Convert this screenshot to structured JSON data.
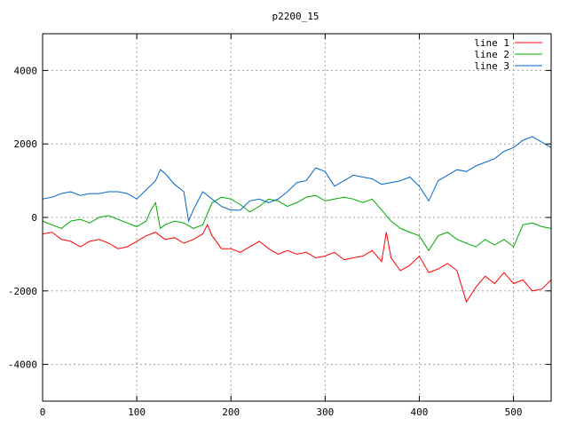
{
  "chart_data": {
    "type": "line",
    "title": "p2200_15",
    "xlabel": "",
    "ylabel": "",
    "xlim": [
      0,
      540
    ],
    "ylim": [
      -5000,
      5000
    ],
    "xticks": [
      0,
      100,
      200,
      300,
      400,
      500
    ],
    "yticks": [
      -4000,
      -2000,
      0,
      2000,
      4000
    ],
    "grid": true,
    "legend_position": "top-right",
    "series": [
      {
        "name": "line 1",
        "color": "#ff0000",
        "points": [
          [
            0,
            -450
          ],
          [
            10,
            -400
          ],
          [
            20,
            -600
          ],
          [
            30,
            -650
          ],
          [
            40,
            -800
          ],
          [
            50,
            -650
          ],
          [
            60,
            -600
          ],
          [
            70,
            -700
          ],
          [
            80,
            -850
          ],
          [
            90,
            -800
          ],
          [
            100,
            -650
          ],
          [
            110,
            -500
          ],
          [
            120,
            -400
          ],
          [
            130,
            -600
          ],
          [
            140,
            -550
          ],
          [
            150,
            -700
          ],
          [
            160,
            -600
          ],
          [
            170,
            -450
          ],
          [
            175,
            -200
          ],
          [
            180,
            -500
          ],
          [
            190,
            -850
          ],
          [
            200,
            -850
          ],
          [
            210,
            -950
          ],
          [
            220,
            -800
          ],
          [
            230,
            -650
          ],
          [
            240,
            -850
          ],
          [
            250,
            -1000
          ],
          [
            260,
            -900
          ],
          [
            270,
            -1000
          ],
          [
            280,
            -950
          ],
          [
            290,
            -1100
          ],
          [
            300,
            -1050
          ],
          [
            310,
            -950
          ],
          [
            320,
            -1150
          ],
          [
            330,
            -1100
          ],
          [
            340,
            -1050
          ],
          [
            350,
            -900
          ],
          [
            360,
            -1200
          ],
          [
            365,
            -400
          ],
          [
            370,
            -1100
          ],
          [
            380,
            -1450
          ],
          [
            390,
            -1300
          ],
          [
            400,
            -1050
          ],
          [
            410,
            -1500
          ],
          [
            420,
            -1400
          ],
          [
            430,
            -1250
          ],
          [
            440,
            -1450
          ],
          [
            450,
            -2300
          ],
          [
            460,
            -1900
          ],
          [
            470,
            -1600
          ],
          [
            480,
            -1800
          ],
          [
            490,
            -1500
          ],
          [
            500,
            -1800
          ],
          [
            510,
            -1700
          ],
          [
            520,
            -2000
          ],
          [
            530,
            -1950
          ],
          [
            540,
            -1700
          ]
        ]
      },
      {
        "name": "line 2",
        "color": "#00aa00",
        "points": [
          [
            0,
            -100
          ],
          [
            10,
            -200
          ],
          [
            20,
            -300
          ],
          [
            30,
            -100
          ],
          [
            40,
            -50
          ],
          [
            50,
            -150
          ],
          [
            60,
            0
          ],
          [
            70,
            50
          ],
          [
            80,
            -50
          ],
          [
            90,
            -150
          ],
          [
            100,
            -250
          ],
          [
            110,
            -100
          ],
          [
            115,
            200
          ],
          [
            120,
            400
          ],
          [
            125,
            -300
          ],
          [
            130,
            -200
          ],
          [
            140,
            -100
          ],
          [
            150,
            -150
          ],
          [
            160,
            -300
          ],
          [
            170,
            -200
          ],
          [
            180,
            400
          ],
          [
            190,
            550
          ],
          [
            200,
            500
          ],
          [
            210,
            350
          ],
          [
            220,
            150
          ],
          [
            230,
            300
          ],
          [
            240,
            500
          ],
          [
            250,
            450
          ],
          [
            260,
            300
          ],
          [
            270,
            400
          ],
          [
            280,
            550
          ],
          [
            290,
            600
          ],
          [
            300,
            450
          ],
          [
            310,
            500
          ],
          [
            320,
            550
          ],
          [
            330,
            500
          ],
          [
            340,
            400
          ],
          [
            350,
            500
          ],
          [
            360,
            200
          ],
          [
            370,
            -100
          ],
          [
            380,
            -300
          ],
          [
            390,
            -400
          ],
          [
            400,
            -500
          ],
          [
            410,
            -900
          ],
          [
            420,
            -500
          ],
          [
            430,
            -400
          ],
          [
            440,
            -600
          ],
          [
            450,
            -700
          ],
          [
            460,
            -800
          ],
          [
            470,
            -600
          ],
          [
            480,
            -750
          ],
          [
            490,
            -600
          ],
          [
            500,
            -800
          ],
          [
            510,
            -200
          ],
          [
            520,
            -150
          ],
          [
            530,
            -250
          ],
          [
            540,
            -300
          ]
        ]
      },
      {
        "name": "line 3",
        "color": "#0066cc",
        "points": [
          [
            0,
            500
          ],
          [
            10,
            550
          ],
          [
            20,
            650
          ],
          [
            30,
            700
          ],
          [
            40,
            600
          ],
          [
            50,
            650
          ],
          [
            60,
            650
          ],
          [
            70,
            700
          ],
          [
            80,
            700
          ],
          [
            90,
            650
          ],
          [
            100,
            500
          ],
          [
            110,
            750
          ],
          [
            120,
            1000
          ],
          [
            125,
            1300
          ],
          [
            130,
            1200
          ],
          [
            140,
            900
          ],
          [
            150,
            700
          ],
          [
            155,
            -100
          ],
          [
            160,
            200
          ],
          [
            170,
            700
          ],
          [
            180,
            500
          ],
          [
            190,
            300
          ],
          [
            200,
            200
          ],
          [
            210,
            200
          ],
          [
            220,
            450
          ],
          [
            230,
            500
          ],
          [
            240,
            400
          ],
          [
            250,
            500
          ],
          [
            260,
            700
          ],
          [
            270,
            950
          ],
          [
            280,
            1000
          ],
          [
            290,
            1350
          ],
          [
            300,
            1250
          ],
          [
            310,
            850
          ],
          [
            320,
            1000
          ],
          [
            330,
            1150
          ],
          [
            340,
            1100
          ],
          [
            350,
            1050
          ],
          [
            360,
            900
          ],
          [
            370,
            950
          ],
          [
            380,
            1000
          ],
          [
            390,
            1100
          ],
          [
            400,
            850
          ],
          [
            410,
            450
          ],
          [
            420,
            1000
          ],
          [
            430,
            1150
          ],
          [
            440,
            1300
          ],
          [
            450,
            1250
          ],
          [
            460,
            1400
          ],
          [
            470,
            1500
          ],
          [
            480,
            1600
          ],
          [
            490,
            1800
          ],
          [
            500,
            1900
          ],
          [
            510,
            2100
          ],
          [
            520,
            2200
          ],
          [
            530,
            2050
          ],
          [
            540,
            1900
          ]
        ]
      }
    ]
  }
}
